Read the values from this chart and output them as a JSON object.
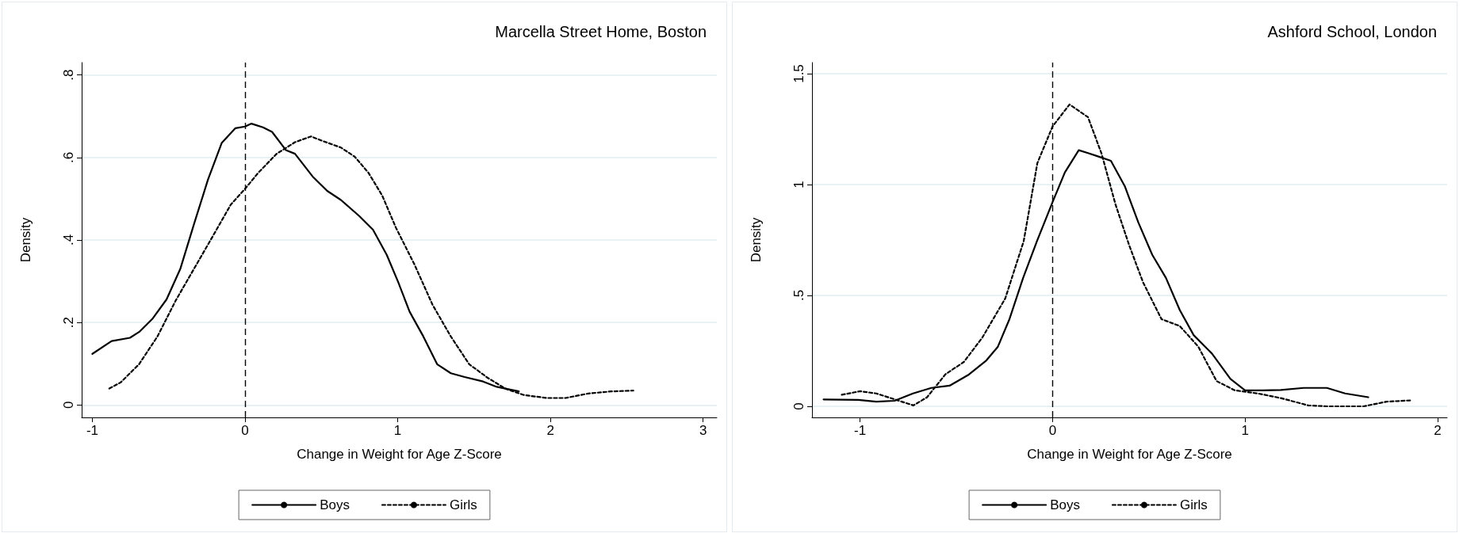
{
  "chart_data": [
    {
      "type": "line",
      "title": "Marcella Street Home, Boston",
      "xlabel": "Change in Weight for Age Z-Score",
      "ylabel": "Density",
      "xlim": [
        -1.07,
        3.09
      ],
      "ylim": [
        -0.03,
        0.83
      ],
      "xticks": [
        -1,
        0,
        1,
        2,
        3
      ],
      "yticks": [
        0,
        {
          "value": 0.2,
          "label": ".2"
        },
        {
          "value": 0.4,
          "label": ".4"
        },
        {
          "value": 0.6,
          "label": ".6"
        },
        {
          "value": 0.8,
          "label": ".8"
        }
      ],
      "grid": "y",
      "legend": "bottom",
      "marker": "none",
      "ref_lines": [
        {
          "axis": "x",
          "value": 0,
          "line_style": "dashed",
          "color": "#000000"
        }
      ],
      "series": [
        {
          "name": "Boys",
          "color": "#000000",
          "line_style": "solid",
          "x": [
            -1,
            -0.874,
            -0.754,
            -0.694,
            -0.604,
            -0.514,
            -0.423,
            -0.333,
            -0.243,
            -0.153,
            -0.063,
            0,
            0.042,
            0.117,
            0.177,
            0.267,
            0.327,
            0.447,
            0.538,
            0.628,
            0.748,
            0.838,
            0.928,
            1.003,
            1.078,
            1.168,
            1.258,
            1.348,
            1.438,
            1.559,
            1.649,
            1.793
          ],
          "values": [
            0.124,
            0.155,
            0.163,
            0.177,
            0.21,
            0.256,
            0.331,
            0.44,
            0.546,
            0.635,
            0.671,
            0.675,
            0.682,
            0.673,
            0.662,
            0.618,
            0.609,
            0.552,
            0.519,
            0.497,
            0.458,
            0.425,
            0.364,
            0.298,
            0.226,
            0.166,
            0.099,
            0.077,
            0.068,
            0.057,
            0.044,
            0.033
          ]
        },
        {
          "name": "Girls",
          "color": "#000000",
          "line_style": "dashed",
          "x": [
            -0.889,
            -0.814,
            -0.694,
            -0.574,
            -0.453,
            -0.333,
            -0.213,
            -0.093,
            0,
            0.087,
            0.207,
            0.327,
            0.432,
            0.508,
            0.628,
            0.718,
            0.808,
            0.898,
            0.988,
            1.108,
            1.228,
            1.348,
            1.468,
            1.589,
            1.709,
            1.829,
            1.979,
            2.099,
            2.249,
            2.399,
            2.543
          ],
          "values": [
            0.04,
            0.055,
            0.099,
            0.166,
            0.254,
            0.331,
            0.408,
            0.486,
            0.524,
            0.563,
            0.609,
            0.637,
            0.651,
            0.64,
            0.624,
            0.602,
            0.563,
            0.508,
            0.43,
            0.342,
            0.243,
            0.166,
            0.099,
            0.066,
            0.039,
            0.024,
            0.017,
            0.017,
            0.028,
            0.033,
            0.035
          ]
        }
      ]
    },
    {
      "type": "line",
      "title": "Ashford School, London",
      "xlabel": "Change in Weight for Age Z-Score",
      "ylabel": "Density",
      "xlim": [
        -1.25,
        2.05
      ],
      "ylim": [
        -0.05,
        1.55
      ],
      "xticks": [
        -1,
        0,
        1,
        2
      ],
      "yticks": [
        0,
        {
          "value": 0.5,
          "label": ".5"
        },
        1,
        1.5
      ],
      "grid": "y",
      "legend": "bottom",
      "marker": "none",
      "ref_lines": [
        {
          "axis": "x",
          "value": 0,
          "line_style": "dashed",
          "color": "#000000"
        }
      ],
      "series": [
        {
          "name": "Boys",
          "color": "#000000",
          "line_style": "solid",
          "x": [
            -1.19,
            -1.01,
            -0.916,
            -0.821,
            -0.725,
            -0.63,
            -0.535,
            -0.439,
            -0.344,
            -0.284,
            -0.224,
            -0.153,
            -0.081,
            0,
            0.064,
            0.136,
            0.184,
            0.232,
            0.303,
            0.375,
            0.446,
            0.518,
            0.589,
            0.661,
            0.733,
            0.828,
            0.924,
            1.0,
            1.091,
            1.186,
            1.305,
            1.425,
            1.52,
            1.64
          ],
          "values": [
            0.031,
            0.029,
            0.021,
            0.025,
            0.058,
            0.083,
            0.093,
            0.141,
            0.207,
            0.269,
            0.393,
            0.579,
            0.745,
            0.921,
            1.055,
            1.155,
            1.142,
            1.128,
            1.107,
            0.993,
            0.828,
            0.683,
            0.579,
            0.434,
            0.321,
            0.238,
            0.124,
            0.072,
            0.072,
            0.074,
            0.083,
            0.083,
            0.058,
            0.041
          ]
        },
        {
          "name": "Girls",
          "color": "#000000",
          "line_style": "dashed",
          "x": [
            -1.095,
            -1.0,
            -0.916,
            -0.819,
            -0.723,
            -0.652,
            -0.556,
            -0.461,
            -0.365,
            -0.246,
            -0.15,
            -0.079,
            0,
            0.088,
            0.184,
            0.255,
            0.327,
            0.399,
            0.47,
            0.566,
            0.661,
            0.757,
            0.852,
            0.947,
            1.067,
            1.186,
            1.329,
            1.425,
            1.616,
            1.735,
            1.866
          ],
          "values": [
            0.052,
            0.068,
            0.058,
            0.031,
            0.004,
            0.041,
            0.145,
            0.2,
            0.31,
            0.486,
            0.745,
            1.097,
            1.262,
            1.361,
            1.304,
            1.138,
            0.91,
            0.724,
            0.559,
            0.393,
            0.362,
            0.269,
            0.114,
            0.072,
            0.058,
            0.037,
            0.004,
            0,
            0,
            0.021,
            0.027
          ]
        }
      ]
    }
  ]
}
